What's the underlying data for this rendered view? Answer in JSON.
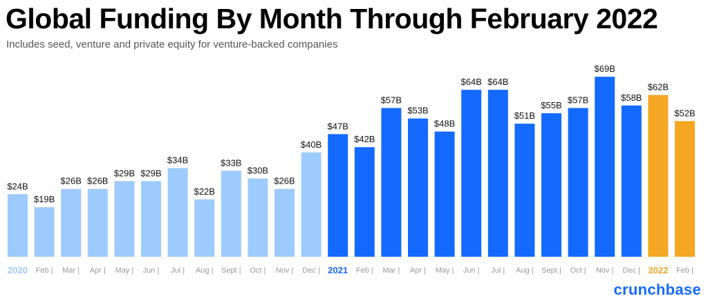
{
  "header": {
    "title": "Global Funding By Month Through February 2022",
    "subtitle": "Includes seed, venture and private equity for venture-backed companies"
  },
  "brand": {
    "name": "crunchbase",
    "color": "#146aff"
  },
  "colors": {
    "2020": "#9ecbff",
    "2021": "#146aff",
    "2022": "#f5a623",
    "tick_text": "#999999",
    "label_text": "#111111"
  },
  "chart_data": {
    "type": "bar",
    "title": "Global Funding By Month Through February 2022",
    "subtitle": "Includes seed, venture and private equity for venture-backed companies",
    "xlabel": "",
    "ylabel": "",
    "ylim": [
      0,
      75
    ],
    "grid": false,
    "categories": [
      "2020",
      "Feb",
      "Mar",
      "Apr",
      "May",
      "Jun",
      "Jul",
      "Aug",
      "Sept",
      "Oct",
      "Nov",
      "Dec",
      "2021",
      "Feb",
      "Mar",
      "Apr",
      "May",
      "Jun",
      "Jul",
      "Aug",
      "Sept",
      "Oct",
      "Nov",
      "Dec",
      "2022",
      "Feb"
    ],
    "values": [
      24,
      19,
      26,
      26,
      29,
      29,
      34,
      22,
      33,
      30,
      26,
      40,
      47,
      42,
      57,
      53,
      48,
      64,
      64,
      51,
      55,
      57,
      69,
      58,
      62,
      52
    ],
    "labels": [
      "$24B",
      "$19B",
      "$26B",
      "$26B",
      "$29B",
      "$29B",
      "$34B",
      "$22B",
      "$33B",
      "$30B",
      "$26B",
      "$40B",
      "$47B",
      "$42B",
      "$57B",
      "$53B",
      "$48B",
      "$64B",
      "$64B",
      "$51B",
      "$55B",
      "$57B",
      "$69B",
      "$58B",
      "$62B",
      "$52B"
    ],
    "years": [
      "2020",
      "2020",
      "2020",
      "2020",
      "2020",
      "2020",
      "2020",
      "2020",
      "2020",
      "2020",
      "2020",
      "2020",
      "2021",
      "2021",
      "2021",
      "2021",
      "2021",
      "2021",
      "2021",
      "2021",
      "2021",
      "2021",
      "2021",
      "2021",
      "2022",
      "2022"
    ],
    "unit": "$B"
  }
}
